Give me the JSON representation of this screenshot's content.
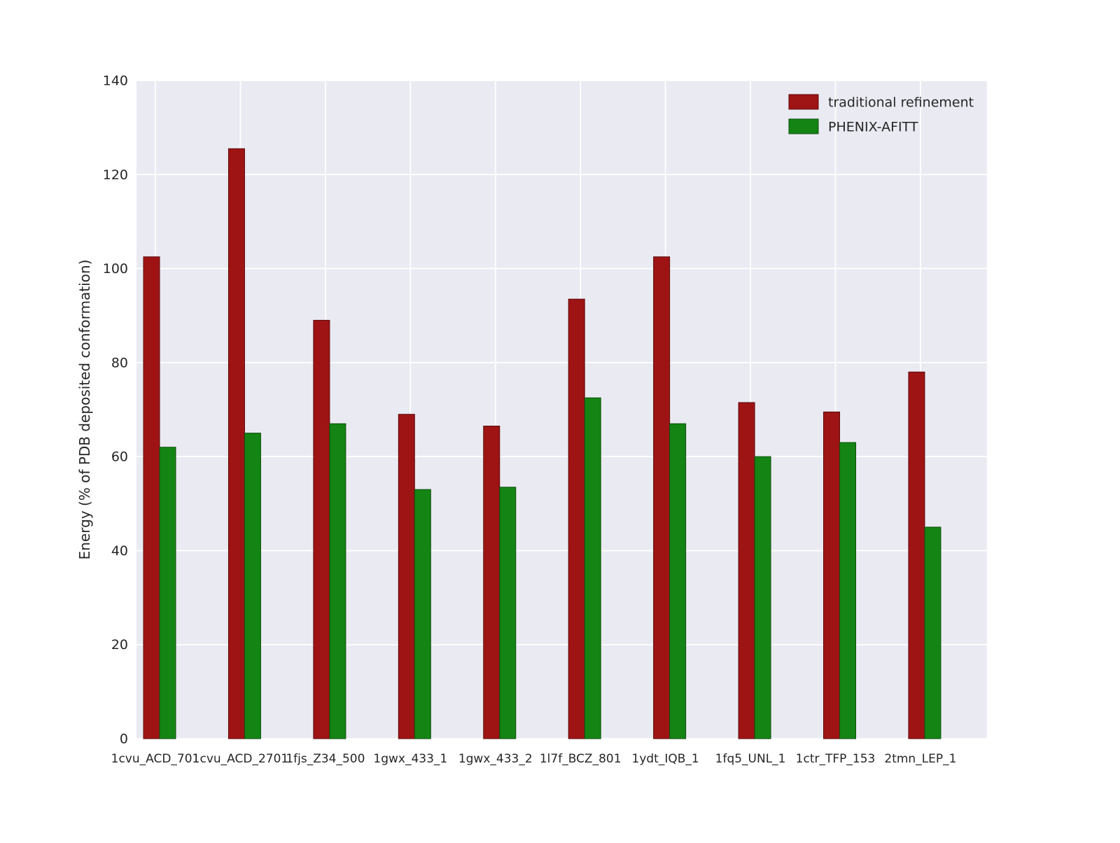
{
  "chart_data": {
    "type": "bar",
    "title": "",
    "xlabel": "",
    "ylabel": "Energy (% of PDB deposited conformation)",
    "ylim": [
      0,
      140
    ],
    "ytick_step": 20,
    "grid": true,
    "legend_position": "upper right",
    "categories": [
      "1cvu_ACD_701",
      "1cvu_ACD_2701",
      "1fjs_Z34_500",
      "1gwx_433_1",
      "1gwx_433_2",
      "1l7f_BCZ_801",
      "1ydt_IQB_1",
      "1fq5_UNL_1",
      "1ctr_TFP_153",
      "2tmn_LEP_1"
    ],
    "series": [
      {
        "name": "traditional refinement",
        "color": "#9e1414",
        "edge_color": "#5c0a0a",
        "values": [
          102.5,
          125.5,
          89,
          69,
          66.5,
          93.5,
          102.5,
          71.5,
          69.5,
          78
        ]
      },
      {
        "name": "PHENIX-AFITT",
        "color": "#148414",
        "edge_color": "#0b4f0b",
        "values": [
          62,
          65,
          67,
          53,
          53.5,
          72.5,
          67,
          60,
          63,
          45
        ]
      }
    ],
    "colors": {
      "plot_bg": "#eaeaf2",
      "grid": "#ffffff",
      "text": "#262626"
    }
  }
}
